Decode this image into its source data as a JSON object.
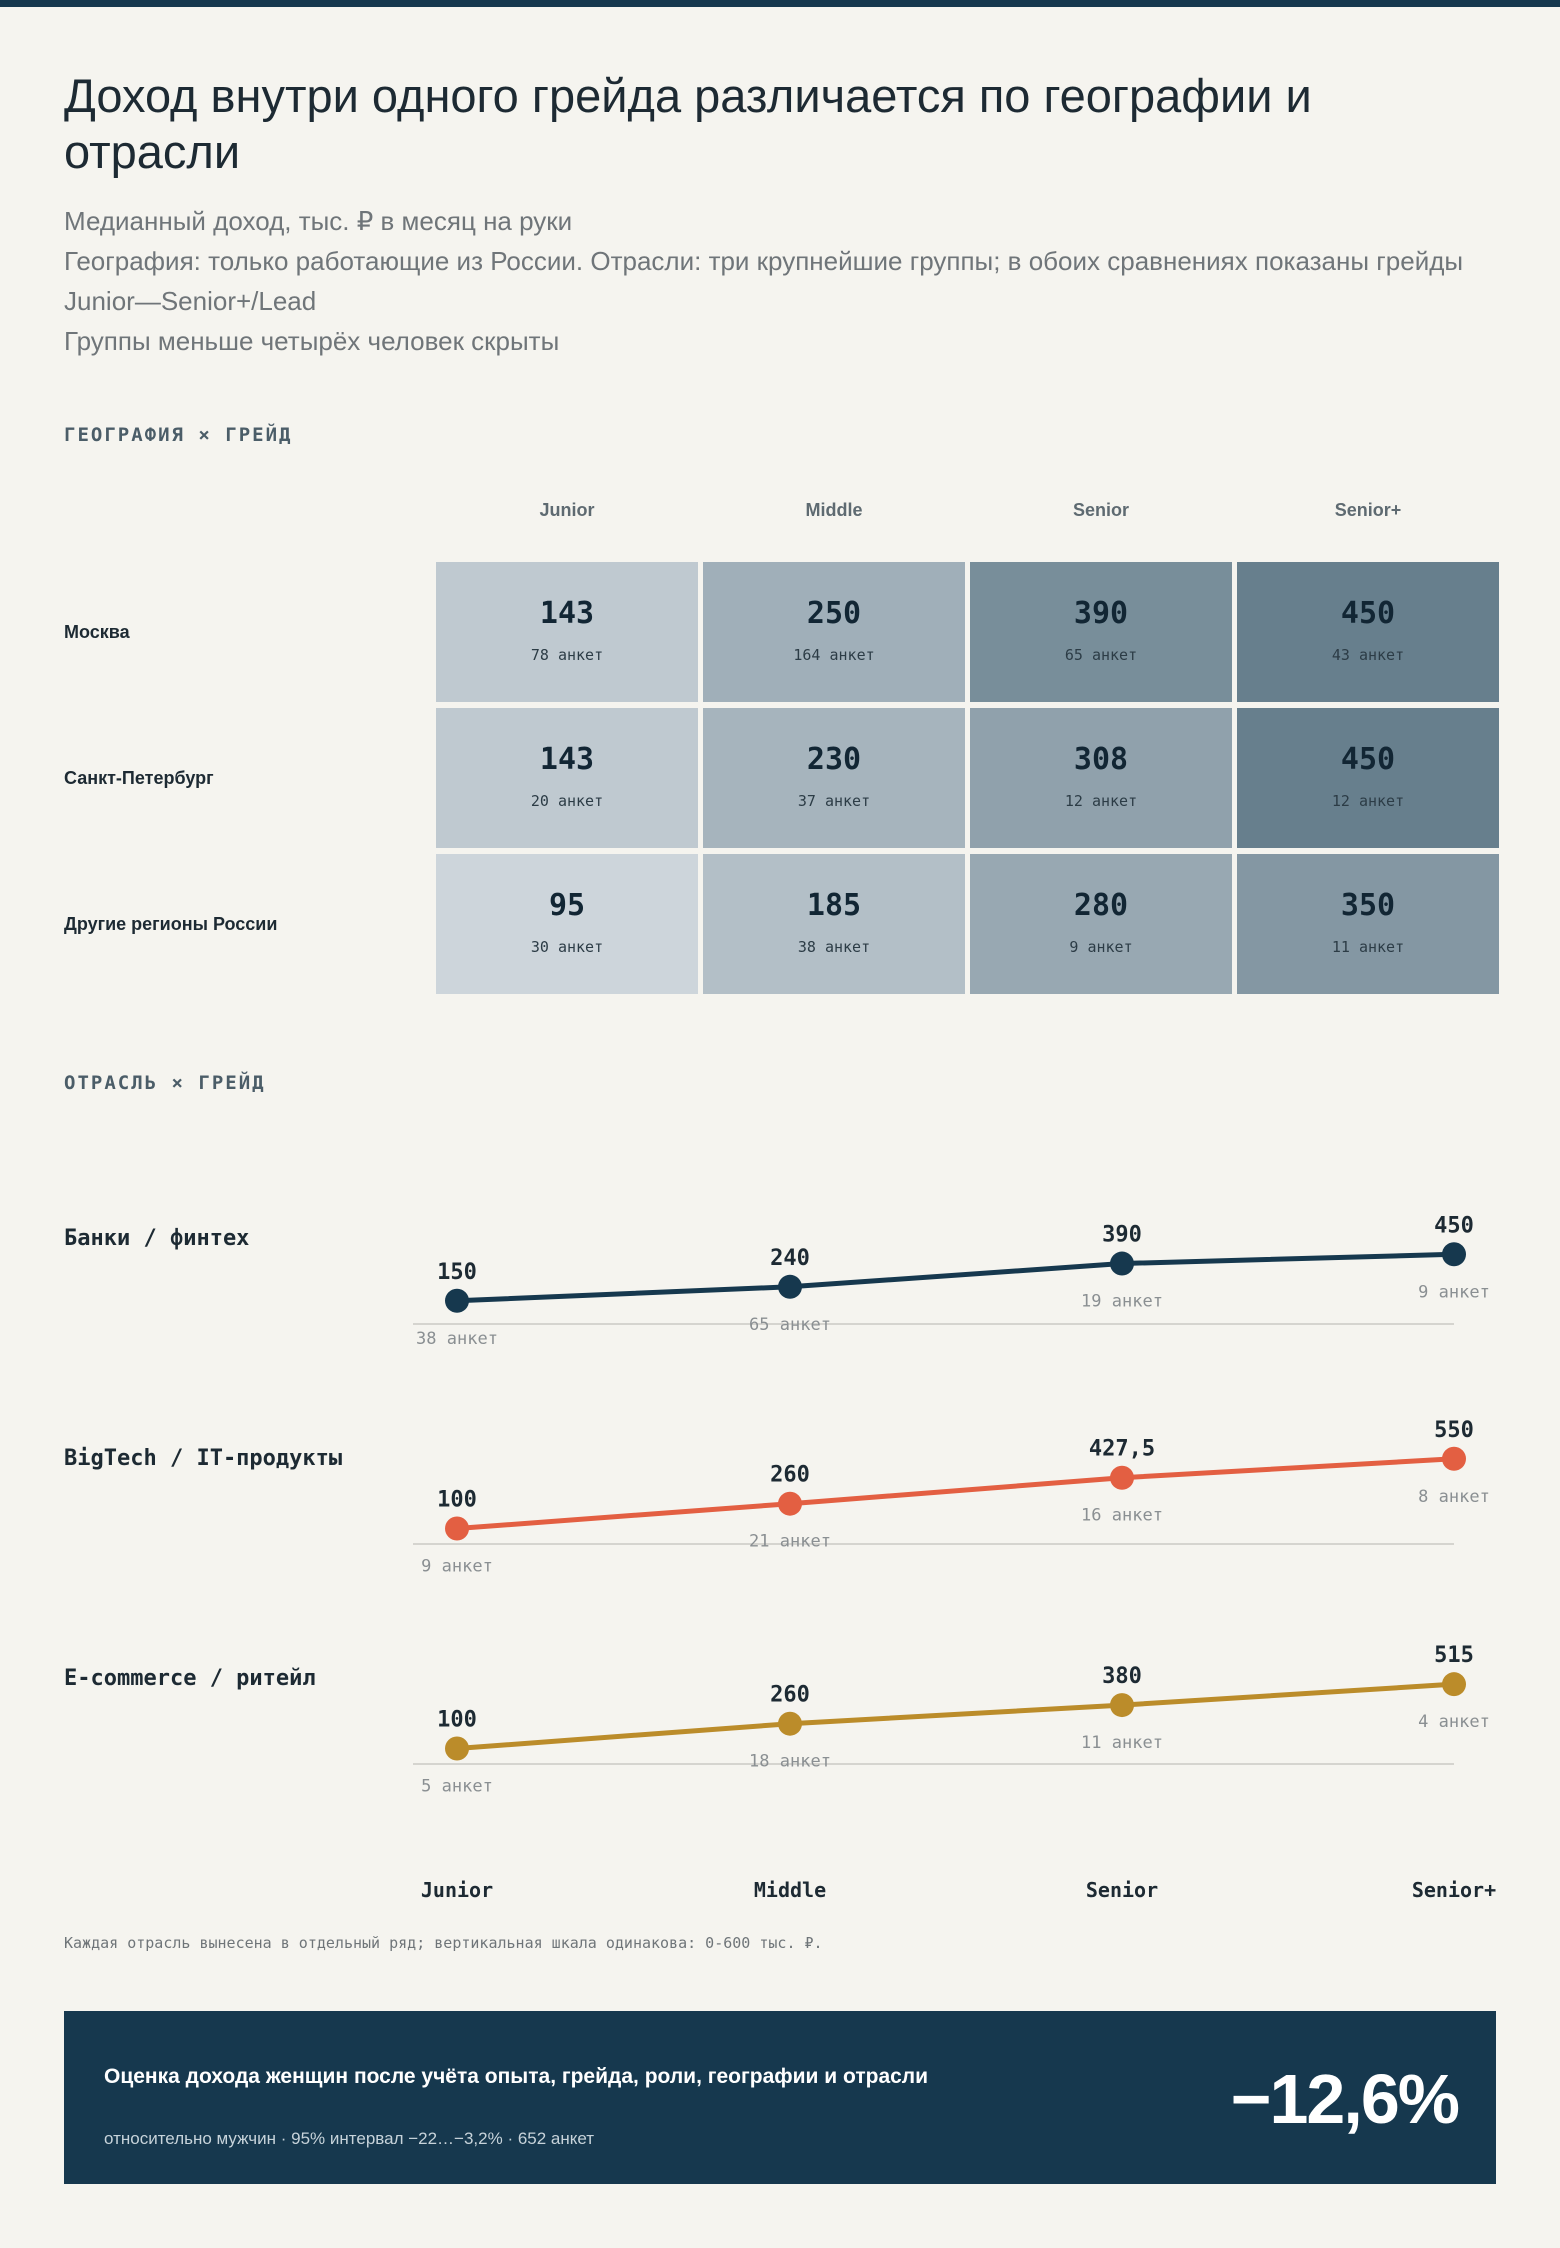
{
  "title": "Доход внутри одного грейда различается по географии и отрасли",
  "subtitles": [
    "Медианный доход, тыс. ₽ в месяц на руки",
    "География: только работающие из России. Отрасли: три крупнейшие группы; в обоих сравнениях показаны грейды Junior—Senior+/Lead",
    "Группы меньше четырёх человек скрыты"
  ],
  "sections": {
    "geo": "ГЕОГРАФИЯ × ГРЕЙД",
    "industry": "ОТРАСЛЬ × ГРЕЙД"
  },
  "chart_data": [
    {
      "type": "heatmap",
      "columns": [
        "Junior",
        "Middle",
        "Senior",
        "Senior+"
      ],
      "rows": [
        "Москва",
        "Санкт-Петербург",
        "Другие регионы России"
      ],
      "values": [
        [
          143,
          250,
          390,
          450
        ],
        [
          143,
          230,
          308,
          450
        ],
        [
          95,
          185,
          280,
          350
        ]
      ],
      "value_labels": [
        [
          "143",
          "250",
          "390",
          "450"
        ],
        [
          "143",
          "230",
          "308",
          "450"
        ],
        [
          "95",
          "185",
          "280",
          "350"
        ]
      ],
      "counts": [
        [
          "78 анкет",
          "164 анкет",
          "65 анкет",
          "43 анкет"
        ],
        [
          "20 анкет",
          "37 анкет",
          "12 анкет",
          "12 анкет"
        ],
        [
          "30 анкет",
          "38 анкет",
          "9 анкет",
          "11 анкет"
        ]
      ],
      "color_low": "#cdd5db",
      "color_high": "#677f8d"
    },
    {
      "type": "line",
      "categories": [
        "Junior",
        "Middle",
        "Senior",
        "Senior+"
      ],
      "ylim": [
        0,
        600
      ],
      "series": [
        {
          "name": "Банки / финтех",
          "color": "#16384e",
          "values": [
            150,
            240,
            390,
            450
          ],
          "labels": [
            "150",
            "240",
            "390",
            "450"
          ],
          "counts": [
            "38 анкет",
            "65 анкет",
            "19 анкет",
            "9 анкет"
          ]
        },
        {
          "name": "BigTech / IT-продукты",
          "color": "#e35f42",
          "values": [
            100,
            260,
            427.5,
            550
          ],
          "labels": [
            "100",
            "260",
            "427,5",
            "550"
          ],
          "counts": [
            "9 анкет",
            "21 анкет",
            "16 анкет",
            "8 анкет"
          ]
        },
        {
          "name": "E-commerce / ритейл",
          "color": "#bb8c2a",
          "values": [
            100,
            260,
            380,
            515
          ],
          "labels": [
            "100",
            "260",
            "380",
            "515"
          ],
          "counts": [
            "5 анкет",
            "18 анкет",
            "11 анкет",
            "4 анкет"
          ]
        }
      ]
    }
  ],
  "note": "Каждая отрасль вынесена в отдельный ряд; вертикальная шкала одинакова: 0-600 тыс. ₽.",
  "callout": {
    "title": "Оценка дохода женщин после учёта опыта, грейда, роли, географии и отрасли",
    "subtitle": "относительно мужчин · 95% интервал −22…−3,2% · 652 анкет",
    "value": "−12,6%",
    "background": "#16384e"
  }
}
